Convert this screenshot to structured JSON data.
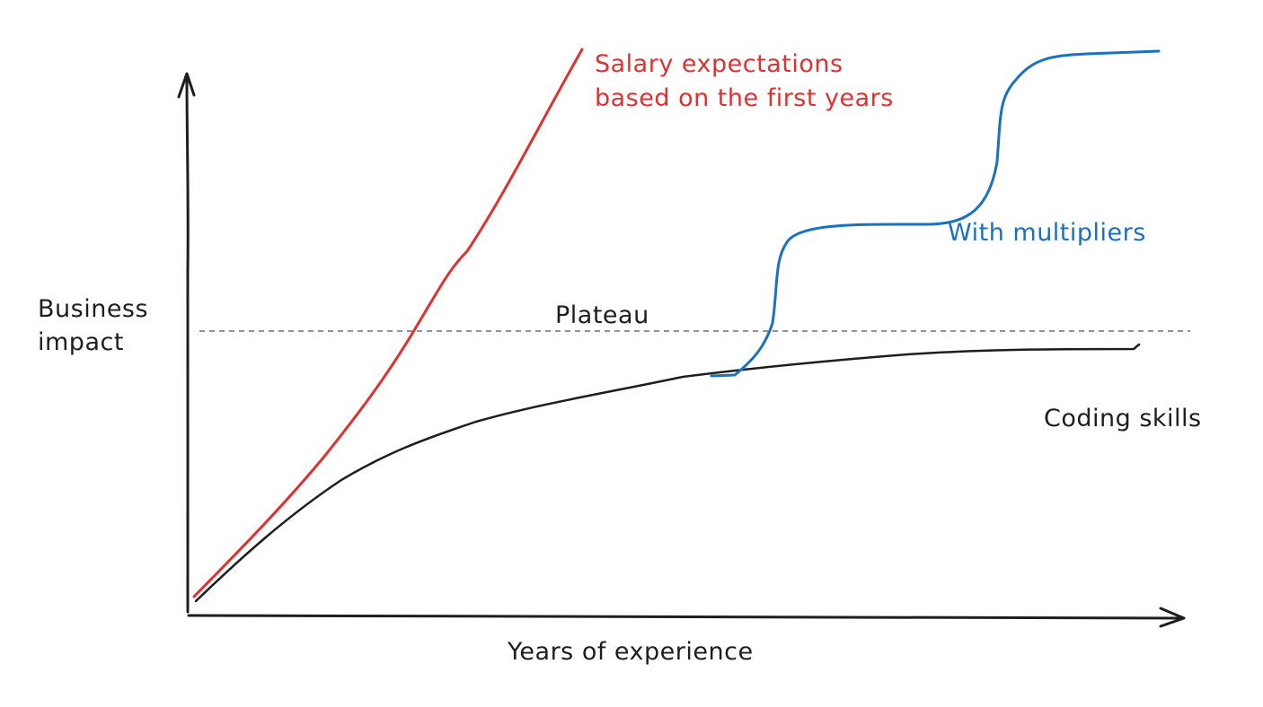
{
  "axes": {
    "y_label_line1": "Business",
    "y_label_line2": "impact",
    "x_label": "Years of experience"
  },
  "annotations": {
    "plateau": "Plateau",
    "salary_line1": "Salary expectations",
    "salary_line2": "based on the first years",
    "multipliers": "With multipliers",
    "coding_skills": "Coding skills"
  },
  "colors": {
    "axis": "#1e1e1e",
    "coding_skills": "#1e1e1e",
    "salary_expectations": "#e03131",
    "with_multipliers": "#1971c2",
    "plateau_line": "#555555"
  }
}
